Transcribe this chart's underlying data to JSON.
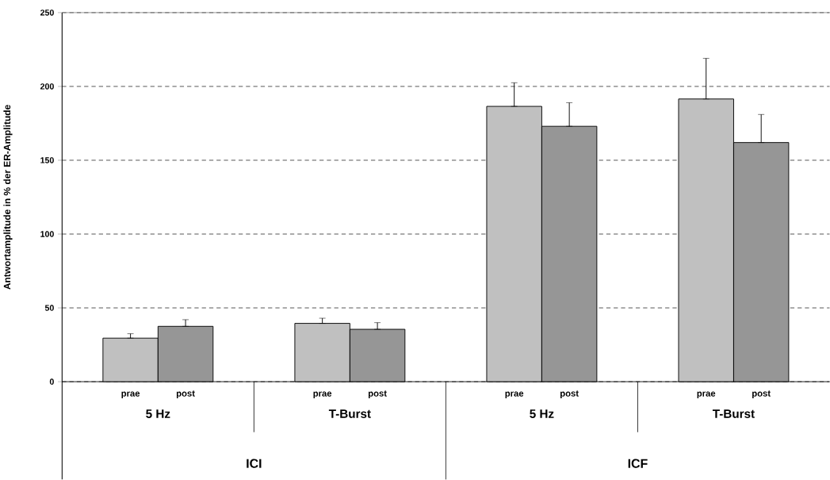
{
  "chart_data": {
    "type": "bar",
    "ylabel": "Antwortamplitude in % der ER-Amplitude",
    "categories": [
      "5 Hz",
      "T-Burst",
      "5 Hz",
      "T-Burst"
    ],
    "series": [
      {
        "name": "prae",
        "color": "#c0c0c0",
        "values": [
          29.5,
          39.5,
          186.5,
          191.5
        ],
        "errors": [
          [
            29.5,
            32.5
          ],
          [
            39.5,
            43
          ],
          [
            186.5,
            202.5
          ],
          [
            191.5,
            219
          ]
        ]
      },
      {
        "name": "post",
        "color": "#969696",
        "values": [
          37.5,
          35.5,
          173,
          162
        ],
        "errors": [
          [
            37.5,
            42
          ],
          [
            35.5,
            40
          ],
          [
            173,
            189
          ],
          [
            162,
            181
          ]
        ]
      }
    ],
    "annotations": [
      "ICI",
      "ICF"
    ],
    "ylim": [
      0,
      250
    ],
    "yticks": [
      0,
      50,
      100,
      150,
      200,
      250
    ],
    "grid": "y"
  }
}
